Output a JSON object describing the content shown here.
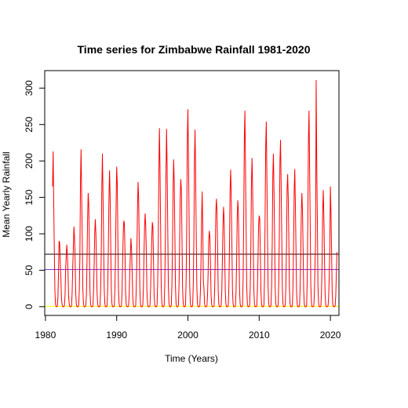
{
  "chart_data": {
    "type": "line",
    "title": "Time series for Zimbabwe Rainfall 1981-2020",
    "xlabel": "Time (Years)",
    "ylabel": "Mean Yearly Rainfall",
    "xlim": [
      1979.9,
      2021.2
    ],
    "ylim": [
      -12,
      324
    ],
    "x_ticks": [
      1980,
      1990,
      2000,
      2010,
      2020
    ],
    "y_ticks": [
      0,
      50,
      100,
      150,
      200,
      250,
      300
    ],
    "start_year": 1981,
    "months_per_year": 12,
    "series": [
      {
        "color": "#ff0000",
        "values": [
          165,
          213,
          140,
          75,
          20,
          3,
          0,
          0,
          1,
          12,
          45,
          90,
          88,
          60,
          40,
          12,
          3,
          0,
          0,
          0,
          2,
          15,
          50,
          70,
          85,
          70,
          48,
          15,
          4,
          0,
          0,
          0,
          1,
          20,
          55,
          80,
          110,
          95,
          65,
          20,
          4,
          0,
          0,
          0,
          2,
          22,
          65,
          170,
          216,
          155,
          95,
          25,
          5,
          0,
          0,
          0,
          1,
          15,
          60,
          120,
          156,
          140,
          80,
          22,
          4,
          0,
          0,
          0,
          1,
          20,
          55,
          100,
          120,
          100,
          60,
          18,
          4,
          0,
          0,
          0,
          1,
          25,
          70,
          165,
          210,
          150,
          90,
          25,
          5,
          0,
          0,
          0,
          2,
          30,
          80,
          150,
          187,
          150,
          85,
          22,
          4,
          0,
          0,
          0,
          1,
          25,
          70,
          140,
          192,
          170,
          95,
          25,
          5,
          0,
          0,
          0,
          1,
          20,
          60,
          100,
          118,
          114,
          75,
          20,
          4,
          0,
          0,
          0,
          1,
          15,
          45,
          70,
          94,
          80,
          50,
          15,
          3,
          0,
          0,
          0,
          1,
          25,
          70,
          130,
          171,
          150,
          90,
          25,
          5,
          0,
          0,
          0,
          2,
          25,
          70,
          110,
          128,
          110,
          70,
          20,
          4,
          0,
          0,
          0,
          1,
          20,
          55,
          90,
          116,
          110,
          65,
          18,
          4,
          0,
          0,
          0,
          2,
          30,
          80,
          180,
          245,
          190,
          110,
          30,
          6,
          0,
          0,
          0,
          2,
          30,
          90,
          180,
          244,
          190,
          110,
          30,
          6,
          0,
          0,
          0,
          2,
          28,
          80,
          160,
          202,
          170,
          100,
          28,
          5,
          0,
          0,
          0,
          2,
          30,
          85,
          150,
          175,
          160,
          95,
          25,
          5,
          0,
          0,
          0,
          2,
          40,
          110,
          230,
          271,
          200,
          120,
          30,
          6,
          0,
          0,
          0,
          2,
          30,
          90,
          200,
          243,
          180,
          100,
          28,
          5,
          0,
          0,
          0,
          1,
          20,
          60,
          120,
          158,
          110,
          35,
          25,
          4,
          0,
          0,
          0,
          1,
          15,
          45,
          90,
          104,
          95,
          60,
          15,
          3,
          0,
          0,
          0,
          1,
          22,
          65,
          130,
          148,
          130,
          80,
          22,
          4,
          0,
          0,
          0,
          1,
          20,
          60,
          110,
          137,
          120,
          70,
          20,
          4,
          0,
          0,
          0,
          2,
          28,
          80,
          160,
          188,
          150,
          90,
          25,
          5,
          0,
          0,
          0,
          1,
          20,
          60,
          120,
          146,
          130,
          80,
          22,
          4,
          0,
          0,
          0,
          2,
          40,
          120,
          230,
          269,
          190,
          110,
          30,
          6,
          0,
          0,
          0,
          2,
          28,
          80,
          170,
          204,
          160,
          95,
          25,
          5,
          0,
          0,
          0,
          1,
          22,
          65,
          110,
          125,
          120,
          75,
          20,
          4,
          0,
          0,
          0,
          2,
          40,
          120,
          220,
          254,
          180,
          100,
          28,
          5,
          0,
          0,
          0,
          2,
          30,
          85,
          180,
          210,
          160,
          95,
          25,
          5,
          0,
          0,
          0,
          2,
          35,
          100,
          200,
          229,
          170,
          100,
          28,
          5,
          0,
          0,
          0,
          2,
          30,
          80,
          160,
          182,
          150,
          90,
          25,
          5,
          0,
          0,
          0,
          2,
          30,
          85,
          160,
          189,
          140,
          80,
          22,
          4,
          0,
          0,
          0,
          1,
          25,
          70,
          130,
          156,
          130,
          80,
          22,
          4,
          0,
          0,
          0,
          2,
          40,
          120,
          230,
          269,
          190,
          110,
          30,
          6,
          0,
          0,
          0,
          1,
          18,
          55,
          90,
          311,
          196,
          120,
          30,
          6,
          0,
          0,
          0,
          1,
          20,
          60,
          130,
          160,
          125,
          70,
          20,
          4,
          0,
          0,
          0,
          1,
          12,
          40,
          80,
          165,
          130,
          75,
          20,
          4,
          0,
          0,
          0,
          1,
          15,
          45,
          75
        ]
      }
    ],
    "hlines": [
      {
        "y": 72,
        "color": "#000000"
      },
      {
        "y": 51,
        "color": "#8a2be2"
      },
      {
        "y": 0.5,
        "color": "#ffff00"
      }
    ],
    "grid": false,
    "legend": "none"
  }
}
